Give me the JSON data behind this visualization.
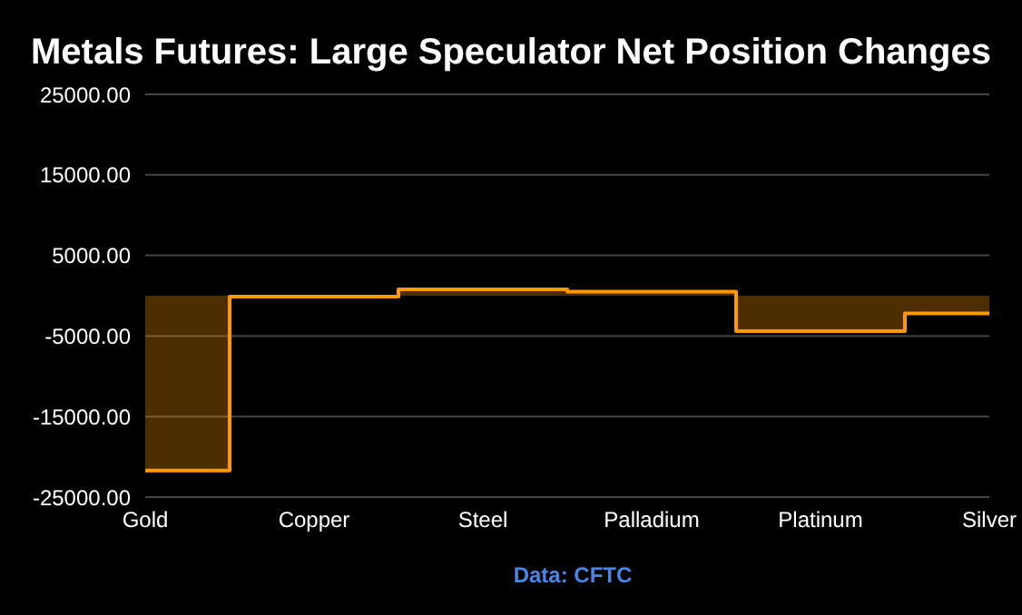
{
  "chart_data": {
    "type": "step",
    "title": "Metals Futures: Large Speculator Net Position Changes",
    "categories": [
      "Gold",
      "Copper",
      "Steel",
      "Palladium",
      "Platinum",
      "Silver"
    ],
    "series": [
      {
        "color": "#ff9900",
        "values": [
          -21700,
          -100,
          800,
          500,
          -4400,
          -2200
        ]
      }
    ],
    "ylim": [
      -25000,
      25000
    ],
    "yticks": [
      {
        "value": 25000,
        "label": "25000.00"
      },
      {
        "value": 15000,
        "label": "15000.00"
      },
      {
        "value": 5000,
        "label": "5000.00"
      },
      {
        "value": -5000,
        "label": "-5000.00"
      },
      {
        "value": -15000,
        "label": "-15000.00"
      },
      {
        "value": -25000,
        "label": "-25000.00"
      }
    ],
    "grid": "y",
    "legend": false,
    "annotations": [
      "Data: CFTC"
    ]
  }
}
